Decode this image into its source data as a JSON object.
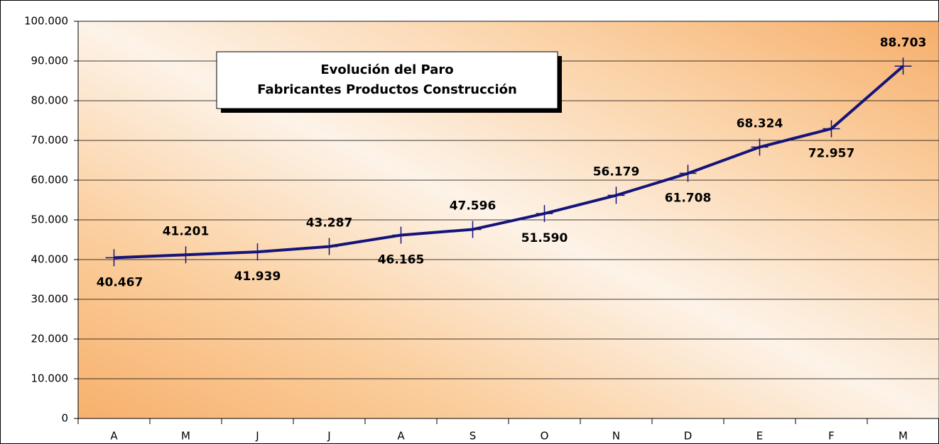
{
  "chart_data": {
    "type": "line",
    "title": [
      "Evolución del Paro",
      "Fabricantes Productos Construcción"
    ],
    "categories": [
      "A",
      "M",
      "J",
      "J",
      "A",
      "S",
      "O",
      "N",
      "D",
      "E",
      "F",
      "M"
    ],
    "values": [
      40467,
      41201,
      41939,
      43287,
      46165,
      47596,
      51590,
      56179,
      61708,
      68324,
      72957,
      88703
    ],
    "value_labels": [
      "40.467",
      "41.201",
      "41.939",
      "43.287",
      "46.165",
      "47.596",
      "51.590",
      "56.179",
      "61.708",
      "68.324",
      "72.957",
      "88.703"
    ],
    "color": "#14147a",
    "ylim": [
      0,
      100000
    ],
    "yticks": [
      0,
      {
        "value": 10000,
        "label": "10.000"
      },
      {
        "value": 20000,
        "label": "20.000"
      },
      {
        "value": 30000,
        "label": "30.000"
      },
      {
        "value": 40000,
        "label": "40.000"
      },
      {
        "value": 50000,
        "label": "50.000"
      },
      {
        "value": 60000,
        "label": "60.000"
      },
      {
        "value": 70000,
        "label": "70.000"
      },
      {
        "value": 80000,
        "label": "80.000"
      },
      {
        "value": 90000,
        "label": "90.000"
      },
      {
        "value": 100000,
        "label": "100.000"
      }
    ],
    "grid": true
  }
}
